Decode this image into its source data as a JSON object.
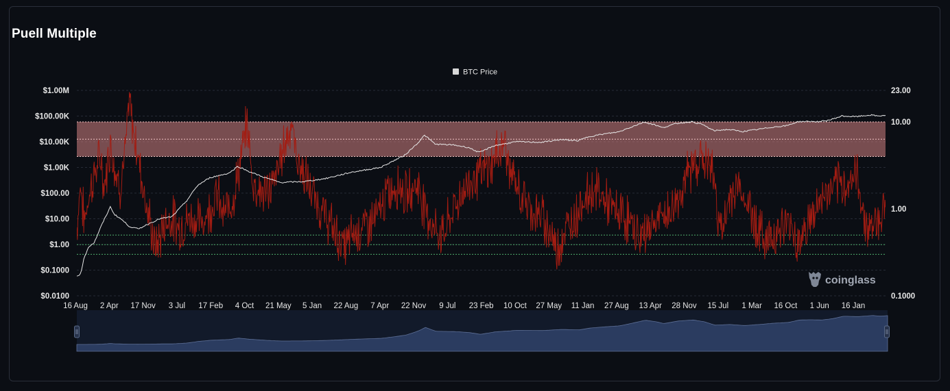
{
  "title": "Puell Multiple",
  "watermark": "coinglass",
  "colors": {
    "background": "#0b0e14",
    "btc_price_line": "#e6e6e6",
    "puell_line": "#a31a12",
    "sell_zone": "#e88a8a",
    "buy_zone": "#3f9a5a",
    "navigator_fill": "#2a3a5c"
  },
  "chart_data": {
    "type": "line",
    "title": "Puell Multiple",
    "legend": {
      "entries": [
        {
          "label": "BTC Price",
          "color": "#dddddd"
        }
      ],
      "placement": "top-center"
    },
    "x_tick_labels": [
      "16 Aug",
      "2 Apr",
      "17 Nov",
      "3 Jul",
      "17 Feb",
      "4 Oct",
      "21 May",
      "5 Jan",
      "22 Aug",
      "7 Apr",
      "22 Nov",
      "9 Jul",
      "23 Feb",
      "10 Oct",
      "27 May",
      "11 Jan",
      "27 Aug",
      "13 Apr",
      "28 Nov",
      "15 Jul",
      "1 Mar",
      "16 Oct",
      "1 Jun",
      "16 Jan"
    ],
    "y_left": {
      "label": "",
      "scale": "log",
      "ticks": [
        "$0.0100",
        "$0.1000",
        "$1.00",
        "$10.00",
        "$100.00",
        "$1.00K",
        "$10.00K",
        "$100.00K",
        "$1.00M"
      ],
      "range": [
        0.01,
        1000000
      ]
    },
    "y_right": {
      "label": "",
      "scale": "log",
      "ticks": [
        "0.1000",
        "1.00",
        "10.00",
        "23.00"
      ],
      "range": [
        0.1,
        23
      ]
    },
    "zones": {
      "sell_zone_puell": [
        4,
        10
      ],
      "buy_zone_puell": [
        0.3,
        0.5
      ]
    },
    "grid": true,
    "series": [
      {
        "name": "BTC Price",
        "axis": "left",
        "values": [
          [
            0.0,
            0.06
          ],
          [
            0.5,
            0.07
          ],
          [
            1.0,
            0.3
          ],
          [
            1.6,
            0.8
          ],
          [
            2.4,
            1.2
          ],
          [
            3.3,
            5.0
          ],
          [
            4.6,
            30
          ],
          [
            5.1,
            15
          ],
          [
            6.0,
            10
          ],
          [
            7.2,
            5
          ],
          [
            8.4,
            4
          ],
          [
            9.6,
            6
          ],
          [
            11.3,
            10
          ],
          [
            13.0,
            12
          ],
          [
            15.0,
            50
          ],
          [
            16.5,
            200
          ],
          [
            18.2,
            400
          ],
          [
            20.8,
            600
          ],
          [
            22.0,
            1100
          ],
          [
            23.5,
            700
          ],
          [
            25.5,
            420
          ],
          [
            27.8,
            260
          ],
          [
            31.0,
            280
          ],
          [
            34.0,
            370
          ],
          [
            37.5,
            650
          ],
          [
            41.5,
            1000
          ],
          [
            44.8,
            3000
          ],
          [
            46.6,
            9000
          ],
          [
            47.5,
            18000
          ],
          [
            49.0,
            8000
          ],
          [
            51.5,
            7500
          ],
          [
            53.5,
            6000
          ],
          [
            55.0,
            3800
          ],
          [
            57.0,
            7000
          ],
          [
            60.0,
            10000
          ],
          [
            63.5,
            9500
          ],
          [
            66.0,
            12000
          ],
          [
            68.5,
            11000
          ],
          [
            70.0,
            16000
          ],
          [
            72.0,
            20000
          ],
          [
            74.0,
            24000
          ],
          [
            76.0,
            40000
          ],
          [
            77.5,
            58000
          ],
          [
            79.0,
            46000
          ],
          [
            80.0,
            35000
          ],
          [
            82.0,
            52000
          ],
          [
            84.0,
            60000
          ],
          [
            85.5,
            47000
          ],
          [
            87.0,
            27000
          ],
          [
            89.0,
            30000
          ],
          [
            91.0,
            25000
          ],
          [
            93.0,
            30000
          ],
          [
            95.0,
            37000
          ],
          [
            97.0,
            42000
          ],
          [
            98.5,
            60000
          ],
          [
            100.0,
            62000
          ],
          [
            101.5,
            60000
          ],
          [
            103.0,
            72000
          ],
          [
            104.5,
            100000
          ],
          [
            106.5,
            95000
          ],
          [
            108.5,
            110000
          ],
          [
            109.5,
            100000
          ],
          [
            110.5,
            108000
          ]
        ]
      },
      {
        "name": "Puell Multiple",
        "axis": "right",
        "values": [
          [
            0.0,
            0.6
          ],
          [
            0.5,
            2.0
          ],
          [
            1.0,
            0.7
          ],
          [
            1.6,
            1.4
          ],
          [
            2.4,
            2.5
          ],
          [
            3.3,
            4.0
          ],
          [
            3.7,
            1.6
          ],
          [
            4.6,
            6.0
          ],
          [
            5.2,
            3.0
          ],
          [
            5.9,
            1.8
          ],
          [
            6.7,
            5.0
          ],
          [
            7.2,
            20.0
          ],
          [
            7.5,
            10.0
          ],
          [
            8.4,
            4.0
          ],
          [
            9.6,
            1.0
          ],
          [
            10.7,
            0.35
          ],
          [
            11.3,
            0.45
          ],
          [
            12.0,
            0.7
          ],
          [
            13.0,
            0.8
          ],
          [
            14.0,
            0.6
          ],
          [
            15.5,
            0.8
          ],
          [
            17.0,
            0.7
          ],
          [
            18.2,
            1.0
          ],
          [
            19.2,
            1.5
          ],
          [
            20.0,
            0.8
          ],
          [
            21.5,
            1.5
          ],
          [
            22.5,
            4.0
          ],
          [
            23.3,
            10.0
          ],
          [
            24.0,
            2.0
          ],
          [
            25.5,
            1.5
          ],
          [
            27.0,
            2.0
          ],
          [
            28.2,
            5.0
          ],
          [
            29.3,
            10.0
          ],
          [
            30.0,
            4.0
          ],
          [
            31.0,
            2.5
          ],
          [
            32.5,
            1.3
          ],
          [
            34.0,
            0.8
          ],
          [
            35.5,
            0.5
          ],
          [
            36.6,
            0.35
          ],
          [
            37.5,
            0.5
          ],
          [
            39.0,
            0.6
          ],
          [
            41.0,
            0.8
          ],
          [
            42.5,
            1.5
          ],
          [
            44.0,
            2.0
          ],
          [
            45.0,
            1.4
          ],
          [
            46.5,
            2.0
          ],
          [
            47.6,
            1.0
          ],
          [
            48.8,
            0.6
          ],
          [
            50.0,
            0.5
          ],
          [
            51.5,
            1.0
          ],
          [
            53.5,
            2.0
          ],
          [
            55.0,
            2.5
          ],
          [
            56.5,
            3.0
          ],
          [
            57.5,
            4.5
          ],
          [
            58.5,
            6.0
          ],
          [
            59.0,
            3.0
          ],
          [
            60.0,
            1.8
          ],
          [
            61.0,
            1.3
          ],
          [
            62.0,
            1.0
          ],
          [
            63.5,
            0.8
          ],
          [
            64.5,
            0.6
          ],
          [
            65.5,
            0.35
          ],
          [
            66.5,
            0.5
          ],
          [
            68.0,
            0.8
          ],
          [
            69.0,
            1.2
          ],
          [
            70.0,
            1.5
          ],
          [
            71.0,
            1.7
          ],
          [
            72.0,
            1.3
          ],
          [
            73.0,
            1.0
          ],
          [
            74.0,
            0.9
          ],
          [
            75.0,
            0.8
          ],
          [
            76.0,
            0.6
          ],
          [
            77.0,
            0.45
          ],
          [
            78.0,
            0.6
          ],
          [
            79.0,
            0.7
          ],
          [
            80.0,
            0.8
          ],
          [
            81.0,
            0.9
          ],
          [
            82.0,
            1.2
          ],
          [
            83.0,
            2.0
          ],
          [
            84.0,
            3.0
          ],
          [
            85.0,
            3.8
          ],
          [
            86.0,
            3.5
          ],
          [
            87.0,
            2.5
          ],
          [
            87.5,
            1.0
          ],
          [
            88.3,
            0.5
          ],
          [
            89.3,
            1.5
          ],
          [
            90.5,
            1.8
          ],
          [
            91.5,
            1.2
          ],
          [
            92.5,
            0.8
          ],
          [
            93.5,
            0.5
          ],
          [
            94.5,
            0.45
          ],
          [
            95.5,
            0.55
          ],
          [
            96.5,
            0.6
          ],
          [
            97.5,
            0.7
          ],
          [
            98.5,
            0.4
          ],
          [
            99.5,
            0.6
          ],
          [
            100.5,
            0.8
          ],
          [
            101.5,
            1.2
          ],
          [
            102.5,
            1.5
          ],
          [
            103.5,
            1.7
          ],
          [
            104.5,
            1.8
          ],
          [
            105.5,
            2.0
          ],
          [
            106.5,
            2.5
          ],
          [
            107.0,
            1.5
          ],
          [
            107.5,
            0.9
          ],
          [
            108.0,
            0.6
          ],
          [
            109.0,
            0.7
          ],
          [
            110.0,
            0.9
          ],
          [
            110.5,
            1.0
          ]
        ]
      }
    ]
  }
}
